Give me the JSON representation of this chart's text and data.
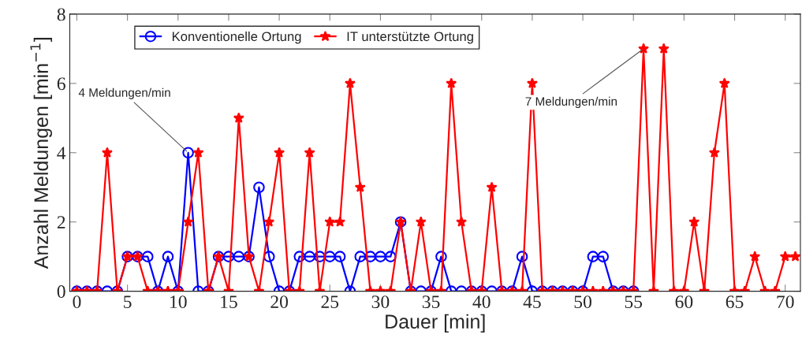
{
  "chart_data": {
    "type": "line",
    "xlabel": "Dauer [min]",
    "ylabel": "Anzahl Meldungen [min$^{−1}$]",
    "xlim": [
      -0.7,
      71.5
    ],
    "xticks": [
      0,
      5,
      10,
      15,
      20,
      25,
      30,
      35,
      40,
      45,
      50,
      55,
      60,
      65,
      70
    ],
    "ylim": [
      0,
      8
    ],
    "yticks": [
      0,
      2,
      4,
      6,
      8
    ],
    "grid": false,
    "legend": "top left",
    "line_style": "solid",
    "series": [
      {
        "name": "Konventionelle Ortung",
        "color": "#0000ff",
        "marker": "circle",
        "x": [
          0,
          1,
          2,
          3,
          4,
          5,
          6,
          7,
          8,
          9,
          10,
          11,
          12,
          13,
          14,
          15,
          16,
          17,
          18,
          19,
          20,
          21,
          22,
          23,
          24,
          25,
          26,
          27,
          28,
          29,
          30,
          31,
          32,
          33,
          34,
          35,
          36,
          37,
          38,
          39,
          40,
          41,
          42,
          43,
          44,
          45,
          46,
          47,
          48,
          49,
          50,
          51,
          52,
          53,
          54,
          55
        ],
        "values": [
          0,
          0,
          0,
          0,
          0,
          1,
          1,
          1,
          0,
          1,
          0,
          4,
          0,
          0,
          1,
          1,
          1,
          1,
          3,
          1,
          0,
          0,
          1,
          1,
          1,
          1,
          1,
          0,
          1,
          1,
          1,
          1,
          2,
          0,
          0,
          0,
          1,
          0,
          0,
          0,
          0,
          0,
          0,
          0,
          1,
          0,
          0,
          0,
          0,
          0,
          0,
          1,
          1,
          0,
          0,
          0
        ]
      },
      {
        "name": "IT unterstützte Ortung",
        "color": "#ff0000",
        "marker": "star",
        "x": [
          0,
          1,
          2,
          3,
          4,
          5,
          6,
          7,
          8,
          9,
          10,
          11,
          12,
          13,
          14,
          15,
          16,
          17,
          18,
          19,
          20,
          21,
          22,
          23,
          24,
          25,
          26,
          27,
          28,
          29,
          30,
          31,
          32,
          33,
          34,
          35,
          36,
          37,
          38,
          39,
          40,
          41,
          42,
          43,
          44,
          45,
          46,
          47,
          48,
          49,
          50,
          51,
          52,
          53,
          54,
          55,
          56,
          57,
          58,
          59,
          60,
          61,
          62,
          63,
          64,
          65,
          66,
          67,
          68,
          69,
          70,
          71
        ],
        "values": [
          0,
          0,
          0,
          4,
          0,
          1,
          1,
          0,
          0,
          0,
          0,
          2,
          4,
          0,
          1,
          0,
          5,
          1,
          0,
          2,
          4,
          0,
          0,
          4,
          0,
          2,
          2,
          6,
          3,
          0,
          0,
          0,
          2,
          0,
          2,
          0,
          0,
          6,
          2,
          0,
          0,
          3,
          0,
          0,
          0,
          6,
          0,
          0,
          0,
          0,
          0,
          0,
          0,
          0,
          0,
          0,
          7,
          0,
          7,
          0,
          0,
          2,
          0,
          4,
          6,
          0,
          0,
          1,
          0,
          0,
          1,
          1
        ]
      }
    ],
    "annotations": [
      {
        "text": "4 Meldungen/min",
        "x": 11,
        "y": 4
      },
      {
        "text": "7 Meldungen/min",
        "x": 56,
        "y": 7
      }
    ]
  }
}
